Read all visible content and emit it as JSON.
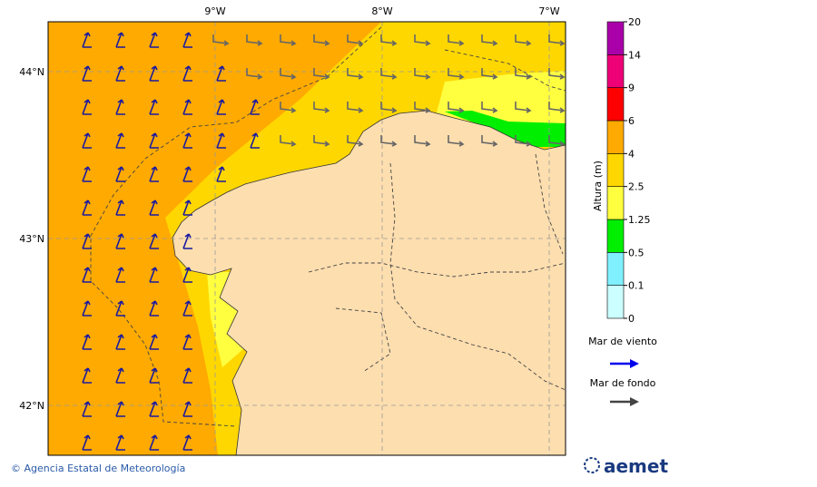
{
  "map": {
    "lon_labels": [
      "9°W",
      "8°W",
      "7°W"
    ],
    "lat_labels": [
      "44°N",
      "43°N",
      "42°N"
    ]
  },
  "legend": {
    "title": "Altura (m)",
    "levels": [
      0,
      0.1,
      0.5,
      1.25,
      2.5,
      4,
      6,
      9,
      14,
      20
    ],
    "colors": [
      "#ccffff",
      "#80f0ff",
      "#00ee00",
      "#ffff40",
      "#ffd700",
      "#ffaa00",
      "#ff0000",
      "#ee0077",
      "#aa00aa"
    ]
  },
  "arrows": {
    "wind_label": "Mar de viento",
    "swell_label": "Mar de fondo"
  },
  "footer": {
    "credit": "© Agencia Estatal de Meteorología",
    "logo": "aemet"
  }
}
